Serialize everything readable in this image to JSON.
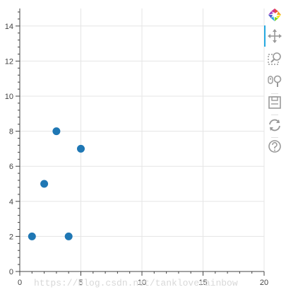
{
  "chart_data": {
    "type": "scatter",
    "title": "",
    "xlabel": "",
    "ylabel": "",
    "xlim": [
      0,
      20
    ],
    "ylim": [
      0,
      15
    ],
    "x_ticks": [
      0,
      5,
      10,
      15,
      20
    ],
    "y_ticks": [
      0,
      2,
      4,
      6,
      8,
      10,
      12,
      14
    ],
    "x_tick_labels": [
      "0",
      "5",
      "10",
      "15",
      "20"
    ],
    "y_tick_labels": [
      "0",
      "2",
      "4",
      "6",
      "8",
      "10",
      "12",
      "14"
    ],
    "grid": true,
    "legend": "none",
    "series": [
      {
        "x": [
          1,
          2,
          3,
          4,
          5
        ],
        "y": [
          2,
          5,
          8,
          2,
          7
        ],
        "color": "#1f77b4"
      }
    ]
  },
  "toolbar": {
    "tools": [
      {
        "name": "bokeh-logo-icon"
      },
      {
        "name": "pan-icon",
        "active": true
      },
      {
        "name": "box-zoom-icon"
      },
      {
        "name": "wheel-zoom-icon"
      },
      {
        "name": "save-icon"
      },
      {
        "name": "reset-icon"
      },
      {
        "name": "help-icon"
      }
    ],
    "active_color": "#26aae1"
  },
  "watermark": {
    "text": "https://blog.csdn.net/tankloverainbow"
  },
  "colors": {
    "grid": "#e5e5e5",
    "axis": "#444444",
    "point": "#1f77b4"
  }
}
